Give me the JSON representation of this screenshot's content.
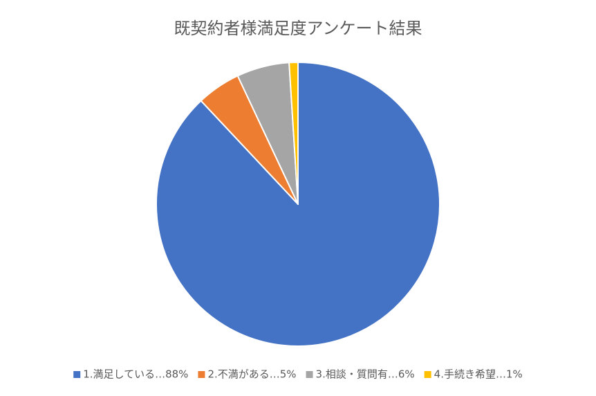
{
  "chart_data": {
    "type": "pie",
    "title": "既契約者様満足度アンケート結果",
    "categories": [
      "1.満足している…88%",
      "2.不満がある…5%",
      "3.相談・質問有…6%",
      "4.手続き希望…1%"
    ],
    "values": [
      88,
      5,
      6,
      1
    ],
    "colors": [
      "#4472c4",
      "#ed7d31",
      "#a5a5a5",
      "#ffc000"
    ],
    "legend": "bottom"
  }
}
